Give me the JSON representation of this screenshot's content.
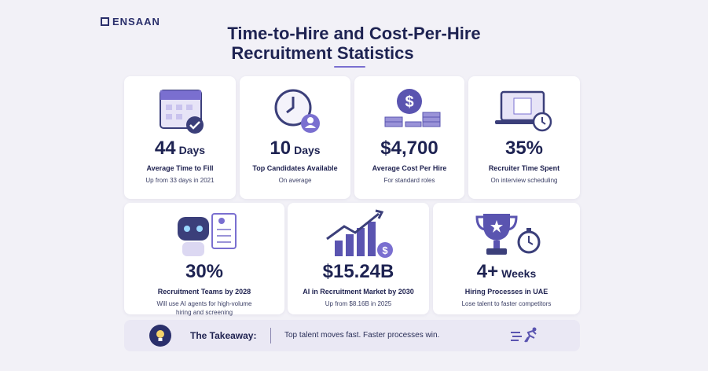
{
  "header": {
    "logo": "ENSAAN",
    "title_line1": "Time-to-Hire and Cost-Per-Hire",
    "title_line2": "Recruitment Statistics"
  },
  "cards": [
    {
      "value": "44",
      "unit": "Days",
      "label": "Average Time to Fill",
      "note": "Up from 33 days in 2021"
    },
    {
      "value": "10",
      "unit": "Days",
      "label": "Top Candidates Available",
      "note": "On average"
    },
    {
      "value": "$4,700",
      "label": "Average Cost Per Hire",
      "note": "For standard roles"
    },
    {
      "value": "35%",
      "label": "Recruiter Time Spent",
      "note": "On interview scheduling"
    },
    {
      "value": "30%",
      "label": "Recruitment Teams by 2028",
      "note": "Will use AI agents for high-volume hiring and screening"
    },
    {
      "value": "$15.24B",
      "label": "AI in Recruitment Market by 2030",
      "note": "Up from $8.16B in 2025"
    },
    {
      "value": "4+",
      "unit": "Weeks",
      "label": "Hiring Processes in UAE",
      "note": "Lose talent to faster competitors"
    }
  ],
  "takeaway": {
    "label": "The Takeaway:",
    "text": "Top talent moves fast. Faster processes win."
  }
}
